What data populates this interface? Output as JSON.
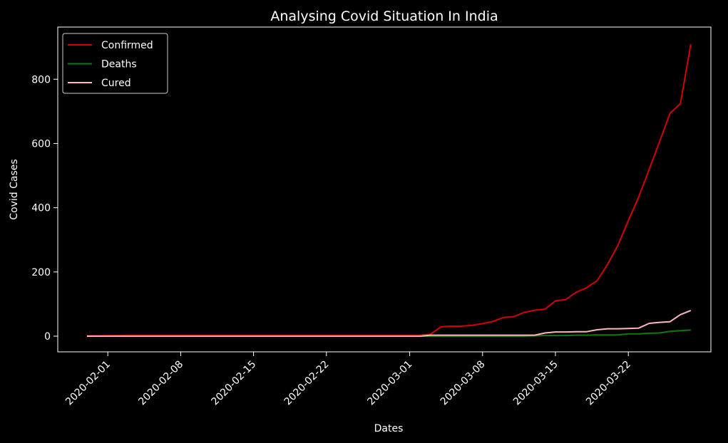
{
  "chart_data": {
    "type": "line",
    "title": "Analysing Covid Situation In India",
    "xlabel": "Dates",
    "ylabel": "Covid Cases",
    "x_start": "2020-01-30",
    "x": [
      "2020-01-30",
      "2020-01-31",
      "2020-02-01",
      "2020-02-02",
      "2020-02-03",
      "2020-02-04",
      "2020-02-05",
      "2020-02-06",
      "2020-02-07",
      "2020-02-08",
      "2020-02-09",
      "2020-02-10",
      "2020-02-11",
      "2020-02-12",
      "2020-02-13",
      "2020-02-14",
      "2020-02-15",
      "2020-02-16",
      "2020-02-17",
      "2020-02-18",
      "2020-02-19",
      "2020-02-20",
      "2020-02-21",
      "2020-02-22",
      "2020-02-23",
      "2020-02-24",
      "2020-02-25",
      "2020-02-26",
      "2020-02-27",
      "2020-02-28",
      "2020-02-29",
      "2020-03-01",
      "2020-03-02",
      "2020-03-03",
      "2020-03-04",
      "2020-03-05",
      "2020-03-06",
      "2020-03-07",
      "2020-03-08",
      "2020-03-09",
      "2020-03-10",
      "2020-03-11",
      "2020-03-12",
      "2020-03-13",
      "2020-03-14",
      "2020-03-15",
      "2020-03-16",
      "2020-03-17",
      "2020-03-18",
      "2020-03-19",
      "2020-03-20",
      "2020-03-21",
      "2020-03-22",
      "2020-03-23",
      "2020-03-24",
      "2020-03-25",
      "2020-03-26",
      "2020-03-27",
      "2020-03-28"
    ],
    "xticks": [
      "2020-02-01",
      "2020-02-08",
      "2020-02-15",
      "2020-02-22",
      "2020-03-01",
      "2020-03-08",
      "2020-03-15",
      "2020-03-22"
    ],
    "yticks": [
      0,
      200,
      400,
      600,
      800
    ],
    "ylim": [
      -48,
      958
    ],
    "grid": false,
    "legend": "upper left",
    "series": [
      {
        "name": "Confirmed",
        "color": "#d40000",
        "values": [
          1,
          1,
          2,
          2,
          3,
          3,
          3,
          3,
          3,
          3,
          3,
          3,
          3,
          3,
          3,
          3,
          3,
          3,
          3,
          3,
          3,
          3,
          3,
          3,
          3,
          3,
          3,
          3,
          3,
          3,
          3,
          3,
          3,
          6,
          29,
          31,
          31,
          34,
          39,
          46,
          58,
          61,
          74,
          81,
          84,
          110,
          114,
          137,
          151,
          173,
          223,
          283,
          360,
          434,
          519,
          606,
          694,
          724,
          909
        ]
      },
      {
        "name": "Deaths",
        "color": "#0e7a0e",
        "values": [
          0,
          0,
          0,
          0,
          0,
          0,
          0,
          0,
          0,
          0,
          0,
          0,
          0,
          0,
          0,
          0,
          0,
          0,
          0,
          0,
          0,
          0,
          0,
          0,
          0,
          0,
          0,
          0,
          0,
          0,
          0,
          0,
          0,
          0,
          0,
          0,
          0,
          0,
          0,
          0,
          0,
          0,
          0,
          1,
          2,
          2,
          2,
          3,
          3,
          4,
          4,
          4,
          7,
          7,
          9,
          10,
          15,
          17,
          19
        ]
      },
      {
        "name": "Cured",
        "color": "#ffb6c1",
        "values": [
          0,
          0,
          0,
          0,
          0,
          0,
          0,
          0,
          0,
          0,
          0,
          0,
          0,
          0,
          0,
          0,
          0,
          0,
          0,
          0,
          0,
          0,
          0,
          0,
          0,
          0,
          0,
          0,
          0,
          0,
          0,
          0,
          0,
          3,
          3,
          3,
          3,
          3,
          3,
          3,
          3,
          3,
          3,
          3,
          10,
          13,
          13,
          14,
          14,
          20,
          23,
          23,
          24,
          25,
          40,
          43,
          45,
          67,
          80
        ]
      }
    ]
  }
}
